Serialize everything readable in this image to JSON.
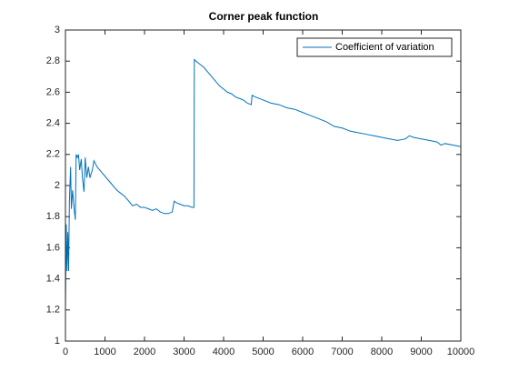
{
  "chart_data": {
    "type": "line",
    "title": "Corner peak function",
    "x": [
      0,
      20,
      40,
      60,
      80,
      100,
      130,
      150,
      180,
      220,
      250,
      270,
      300,
      330,
      360,
      400,
      430,
      470,
      500,
      540,
      580,
      620,
      680,
      720,
      800,
      900,
      1000,
      1100,
      1200,
      1300,
      1400,
      1500,
      1600,
      1700,
      1800,
      1900,
      2000,
      2100,
      2200,
      2300,
      2400,
      2500,
      2600,
      2700,
      2750,
      2800,
      2900,
      3000,
      3100,
      3200,
      3250,
      3260,
      3300,
      3400,
      3500,
      3600,
      3700,
      3800,
      3900,
      4000,
      4100,
      4200,
      4300,
      4400,
      4500,
      4600,
      4700,
      4720,
      4800,
      5000,
      5200,
      5400,
      5600,
      5800,
      6000,
      6200,
      6400,
      6600,
      6800,
      7000,
      7200,
      7400,
      7600,
      7800,
      8000,
      8200,
      8400,
      8600,
      8700,
      8800,
      9000,
      9200,
      9400,
      9500,
      9600,
      9800,
      10000
    ],
    "series": [
      {
        "name": "Coefficient of variation",
        "color": "#0072bd",
        "values": [
          1.2,
          1.75,
          1.45,
          1.7,
          1.45,
          1.9,
          2.12,
          1.85,
          1.97,
          1.85,
          1.78,
          2.2,
          2.18,
          2.2,
          2.1,
          2.17,
          2.05,
          1.96,
          2.18,
          2.05,
          2.12,
          2.05,
          2.1,
          2.16,
          2.12,
          2.09,
          2.06,
          2.03,
          2.0,
          1.97,
          1.95,
          1.93,
          1.9,
          1.87,
          1.88,
          1.86,
          1.86,
          1.85,
          1.84,
          1.85,
          1.83,
          1.82,
          1.82,
          1.83,
          1.9,
          1.89,
          1.88,
          1.87,
          1.87,
          1.86,
          1.86,
          2.81,
          2.8,
          2.78,
          2.76,
          2.73,
          2.7,
          2.67,
          2.64,
          2.62,
          2.6,
          2.59,
          2.57,
          2.56,
          2.55,
          2.53,
          2.52,
          2.58,
          2.57,
          2.55,
          2.53,
          2.52,
          2.5,
          2.49,
          2.47,
          2.45,
          2.43,
          2.41,
          2.38,
          2.37,
          2.35,
          2.34,
          2.33,
          2.32,
          2.31,
          2.3,
          2.29,
          2.3,
          2.32,
          2.31,
          2.3,
          2.29,
          2.28,
          2.26,
          2.27,
          2.26,
          2.25
        ]
      }
    ],
    "xlim": [
      0,
      10000
    ],
    "xticks": [
      0,
      1000,
      2000,
      3000,
      4000,
      5000,
      6000,
      7000,
      8000,
      9000,
      10000
    ],
    "ylim": [
      1,
      3
    ],
    "yticks": [
      1,
      1.2,
      1.4,
      1.6,
      1.8,
      2,
      2.2,
      2.4,
      2.6,
      2.8,
      3
    ],
    "legend": "northeast",
    "grid": false
  }
}
